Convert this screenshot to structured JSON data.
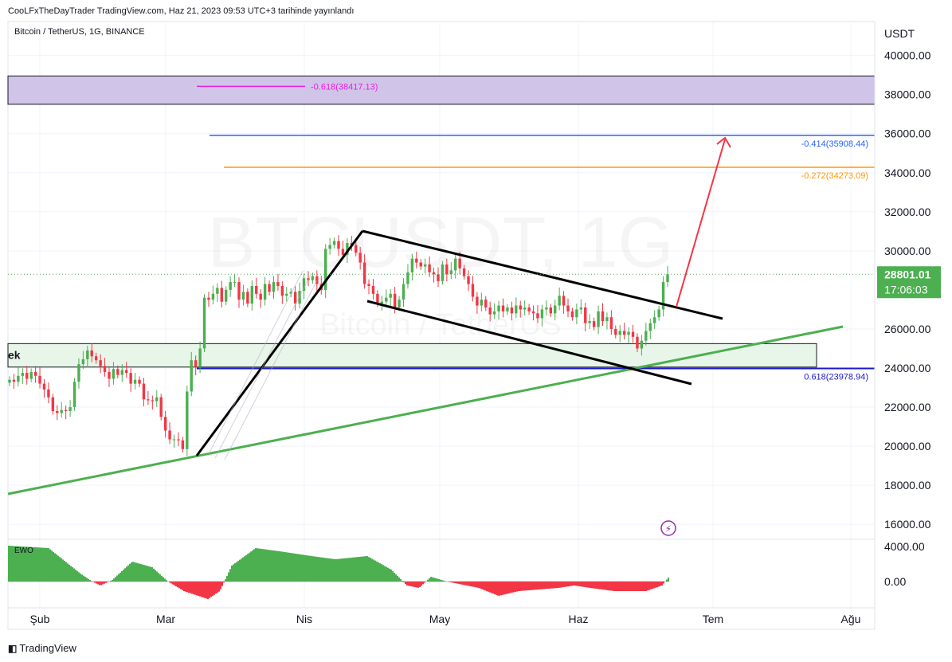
{
  "header": {
    "caption": "CooLFxTheDayTrader TradingView.com, Haz 21, 2023 09:53 UTC+3 tarihinde yayınlandı",
    "symbol": "Bitcoin / TetherUS, 1G, BINANCE"
  },
  "footer": {
    "brand": "TradingView"
  },
  "colors": {
    "up": "#4caf50",
    "down": "#f23645",
    "grid": "#f0f3fa",
    "axis": "#131722",
    "fib_618_high": "#e91ee4",
    "fib_414": "#2962ff",
    "fib_272": "#ff9800",
    "fib_618_low": "#1a1acd",
    "resistance_zone": "#d1c4e9",
    "support_zone": "#e8f5e9",
    "trendline": "#4caf50",
    "arrow": "#f23645"
  },
  "chart_data": {
    "type": "candlestick",
    "watermark": "BTCUSDT, 1G",
    "watermark_sub": "Bitcoin / TetherUS",
    "y_axis": {
      "unit": "USDT",
      "ticks": [
        "40000.00",
        "38000.00",
        "36000.00",
        "34000.00",
        "32000.00",
        "30000.00",
        "26000.00",
        "24000.00",
        "22000.00",
        "20000.00",
        "18000.00",
        "16000.00"
      ],
      "range": [
        15300,
        41200
      ]
    },
    "x_axis": {
      "ticks": [
        "Şub",
        "Mar",
        "Nis",
        "May",
        "Haz",
        "Tem",
        "Ağu"
      ]
    },
    "last_price": {
      "value": "28801.01",
      "countdown": "17:06:03"
    },
    "fib_levels": [
      {
        "label": "-0.618(38417.13)",
        "value": 38417.13
      },
      {
        "label": "-0.414(35908.44)",
        "value": 35908.44
      },
      {
        "label": "-0.272(34273.09)",
        "value": 34273.09
      },
      {
        "label": "0.618(23978.94)",
        "value": 23978.94
      }
    ],
    "zones": [
      {
        "name": "resistance",
        "low": 37500,
        "high": 38950
      },
      {
        "name": "support",
        "label": "ek",
        "low": 24050,
        "high": 25250
      }
    ],
    "candles_ohlc_anchor_closes": [
      23400,
      23300,
      23600,
      23750,
      23450,
      23800,
      23600,
      23200,
      22900,
      22500,
      21800,
      21700,
      21850,
      21800,
      22000,
      23300,
      24200,
      24450,
      24900,
      24600,
      24400,
      24100,
      23800,
      23450,
      23950,
      23650,
      23900,
      23750,
      23200,
      23400,
      23200,
      22400,
      22350,
      22300,
      22500,
      21500,
      20800,
      20350,
      20350,
      20300,
      19850,
      22800,
      24400,
      24050,
      25000,
      27600,
      27500,
      27800,
      28100,
      27400,
      28000,
      28400,
      28400,
      27500,
      27900,
      27300,
      28200,
      27800,
      27500,
      28300,
      27900,
      28400,
      28200,
      27700,
      27800,
      27900,
      27300,
      27950,
      28600,
      28500,
      28700,
      28300,
      28000,
      30100,
      30300,
      30500,
      30100,
      29800,
      30400,
      30300,
      29900,
      29400,
      28300,
      28200,
      27800,
      27300,
      27400,
      27600,
      27800,
      27100,
      27500,
      28300,
      28900,
      29600,
      29400,
      29200,
      29300,
      28900,
      28800,
      28450,
      29300,
      28800,
      29000,
      29600,
      29100,
      28700,
      28300,
      27650,
      27200,
      27500,
      27100,
      26750,
      26900,
      27200,
      26900,
      27100,
      26800,
      27200,
      27000,
      27100,
      26900,
      26800,
      26550,
      27000,
      27100,
      26800,
      27200,
      27700,
      27200,
      26900,
      26600,
      27000,
      27100,
      26300,
      26400,
      26100,
      26900,
      26400,
      26600,
      26000,
      25700,
      25900,
      25700,
      25850,
      25600,
      25000,
      25400,
      25900,
      26300,
      26600,
      27000,
      28400,
      28800
    ],
    "indicator": {
      "name": "EWO",
      "ticks": [
        "4000.00",
        "0.00"
      ]
    }
  }
}
